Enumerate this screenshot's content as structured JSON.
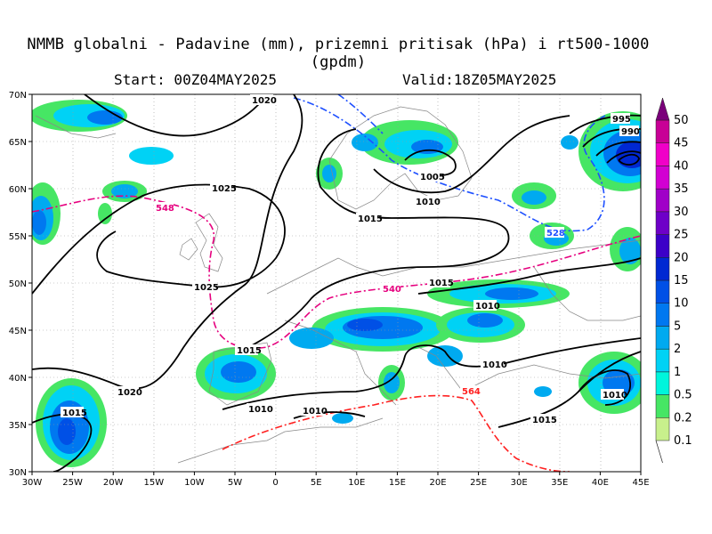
{
  "header": {
    "title": "NMMB globalni - Padavine (mm), prizemni pritisak (hPa) i rt500-1000 (gpdm)",
    "start": "Start: 00Z04MAY2025",
    "valid": "Valid:18Z05MAY2025"
  },
  "map": {
    "lon_range": [
      -30,
      45
    ],
    "lat_range": [
      30,
      70
    ],
    "lon_labels": [
      "30W",
      "25W",
      "20W",
      "15W",
      "10W",
      "5W",
      "0",
      "5E",
      "10E",
      "15E",
      "20E",
      "25E",
      "30E",
      "35E",
      "40E",
      "45E"
    ],
    "lat_labels": [
      "30N",
      "35N",
      "40N",
      "45N",
      "50N",
      "55N",
      "60N",
      "65N",
      "70N"
    ]
  },
  "colorbar": {
    "levels": [
      "0.1",
      "0.2",
      "0.5",
      "1",
      "2",
      "5",
      "10",
      "15",
      "20",
      "25",
      "30",
      "35",
      "40",
      "45",
      "50"
    ],
    "colors": [
      "#c8f08c",
      "#46e664",
      "#00f5dc",
      "#00d2f5",
      "#00aaf0",
      "#0078f0",
      "#0050e6",
      "#0028d2",
      "#3c00c8",
      "#6e00c8",
      "#a000c8",
      "#d200d2",
      "#f000c8",
      "#c80096",
      "#7a007a"
    ]
  },
  "isobars": [
    {
      "label": "1020",
      "color": "#000000"
    },
    {
      "label": "1025",
      "color": "#000000"
    },
    {
      "label": "1025",
      "color": "#000000"
    },
    {
      "label": "1015",
      "color": "#000000"
    },
    {
      "label": "1015",
      "color": "#000000"
    },
    {
      "label": "1015",
      "color": "#000000"
    },
    {
      "label": "1010",
      "color": "#000000"
    },
    {
      "label": "1010",
      "color": "#000000"
    },
    {
      "label": "1010",
      "color": "#000000"
    },
    {
      "label": "1010",
      "color": "#000000"
    },
    {
      "label": "1010",
      "color": "#000000"
    },
    {
      "label": "1005",
      "color": "#000000"
    },
    {
      "label": "1020",
      "color": "#000000"
    },
    {
      "label": "1015",
      "color": "#000000"
    },
    {
      "label": "1015",
      "color": "#000000"
    },
    {
      "label": "995",
      "color": "#000000"
    },
    {
      "label": "990",
      "color": "#000000"
    },
    {
      "label": "1010",
      "color": "#000000"
    }
  ],
  "thickness_labels": [
    {
      "label": "548",
      "color": "#e6007e"
    },
    {
      "label": "540",
      "color": "#e6007e"
    },
    {
      "label": "528",
      "color": "#1e50ff"
    },
    {
      "label": "564",
      "color": "#ff2020"
    }
  ]
}
